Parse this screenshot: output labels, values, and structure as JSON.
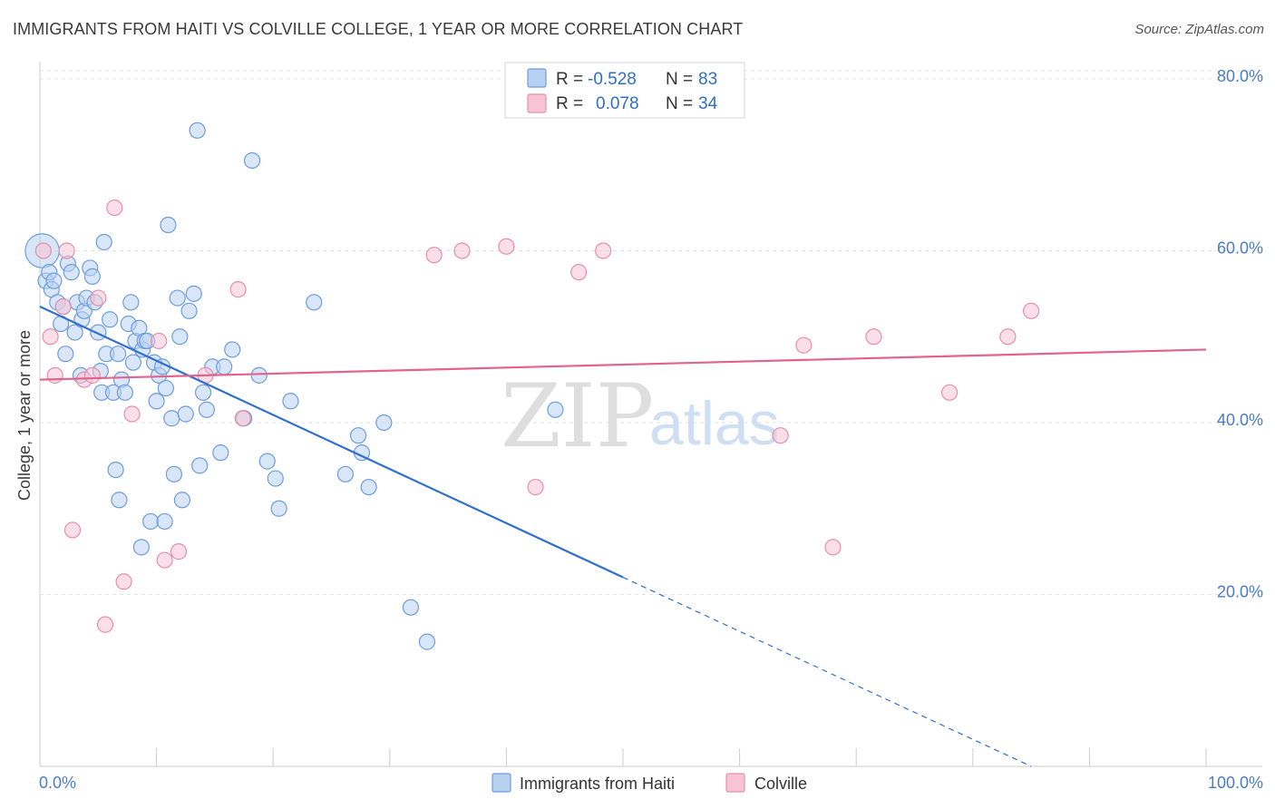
{
  "title": "IMMIGRANTS FROM HAITI VS COLVILLE COLLEGE, 1 YEAR OR MORE CORRELATION CHART",
  "source": "Source: ZipAtlas.com",
  "watermark": {
    "zip": "ZIP",
    "atlas": "atlas"
  },
  "colors": {
    "blue": "#2f6fcf",
    "blue_fill": "#b9d1f1",
    "blue_stroke": "#6d9ddd",
    "pink": "#e0648f",
    "pink_fill": "#f7c4d5",
    "pink_stroke": "#e68fac",
    "grid": "#e3e3e3",
    "tick_label": "#4a7cc7"
  },
  "legend": {
    "r_label": "R =",
    "n_label": "N =",
    "rows": [
      {
        "series": "Immigrants from Haiti",
        "r": "-0.528",
        "n": "83"
      },
      {
        "series": "Colville",
        "r": "0.078",
        "n": "34"
      }
    ]
  },
  "chart_data": {
    "type": "scatter",
    "title": "IMMIGRANTS FROM HAITI VS COLVILLE COLLEGE, 1 YEAR OR MORE CORRELATION CHART",
    "xlabel": "",
    "ylabel": "College, 1 year or more",
    "xlim": [
      0,
      100
    ],
    "ylim": [
      0,
      82
    ],
    "x_tick_labels": [
      "0.0%",
      "100.0%"
    ],
    "y_ticks": [
      20,
      40,
      60,
      80
    ],
    "y_tick_labels": [
      "20.0%",
      "40.0%",
      "60.0%",
      "80.0%"
    ],
    "grid": true,
    "legend_position": "top-center",
    "series": [
      {
        "name": "Immigrants from Haiti",
        "color": "#2f6fcf",
        "trend": {
          "x0": 0,
          "y0": 53.5,
          "x1": 50,
          "y1": 22.0,
          "dashed_to_x": 85,
          "dashed_to_y": 0.0
        },
        "points": [
          [
            0.2,
            60,
            2.2
          ],
          [
            0.5,
            56.5,
            1
          ],
          [
            0.8,
            57.5,
            1
          ],
          [
            1.0,
            55.5,
            1
          ],
          [
            1.2,
            56.5,
            1
          ],
          [
            1.5,
            54,
            1
          ],
          [
            1.8,
            51.5,
            1
          ],
          [
            2.0,
            53.5,
            1
          ],
          [
            2.2,
            48,
            1
          ],
          [
            2.4,
            58.5,
            1
          ],
          [
            2.7,
            57.5,
            1
          ],
          [
            3.0,
            50.5,
            1
          ],
          [
            3.2,
            54,
            1
          ],
          [
            3.5,
            45.5,
            1
          ],
          [
            3.6,
            52,
            1
          ],
          [
            3.8,
            53,
            1
          ],
          [
            4.0,
            54.5,
            1
          ],
          [
            4.3,
            58,
            1
          ],
          [
            4.5,
            57,
            1
          ],
          [
            4.7,
            54,
            1
          ],
          [
            5.0,
            50.5,
            1
          ],
          [
            5.2,
            46,
            1
          ],
          [
            5.3,
            43.5,
            1
          ],
          [
            5.5,
            61,
            1
          ],
          [
            5.7,
            48,
            1
          ],
          [
            6.0,
            52,
            1
          ],
          [
            6.3,
            43.5,
            1
          ],
          [
            6.5,
            34.5,
            1
          ],
          [
            6.7,
            48,
            1
          ],
          [
            6.8,
            31,
            1
          ],
          [
            7.0,
            45,
            1
          ],
          [
            7.3,
            43.5,
            1
          ],
          [
            7.6,
            51.5,
            1
          ],
          [
            7.8,
            54,
            1
          ],
          [
            8.0,
            47,
            1
          ],
          [
            8.2,
            49.5,
            1
          ],
          [
            8.5,
            51,
            1
          ],
          [
            8.7,
            25.5,
            1
          ],
          [
            8.8,
            48.5,
            1
          ],
          [
            9.0,
            49.5,
            1
          ],
          [
            9.2,
            49.5,
            1
          ],
          [
            9.5,
            28.5,
            1
          ],
          [
            9.8,
            47,
            1
          ],
          [
            10.0,
            42.5,
            1
          ],
          [
            10.2,
            45.5,
            1
          ],
          [
            10.5,
            46.5,
            1
          ],
          [
            10.7,
            28.5,
            1
          ],
          [
            10.8,
            44,
            1
          ],
          [
            11.0,
            63,
            1
          ],
          [
            11.3,
            40.5,
            1
          ],
          [
            11.5,
            34,
            1
          ],
          [
            11.8,
            54.5,
            1
          ],
          [
            12.0,
            50,
            1
          ],
          [
            12.2,
            31,
            1
          ],
          [
            12.5,
            41,
            1
          ],
          [
            12.8,
            53,
            1
          ],
          [
            13.2,
            55,
            1
          ],
          [
            13.5,
            74,
            1
          ],
          [
            13.7,
            35,
            1
          ],
          [
            14.0,
            43.5,
            1
          ],
          [
            14.3,
            41.5,
            1
          ],
          [
            14.8,
            46.5,
            1
          ],
          [
            15.5,
            36.5,
            1
          ],
          [
            15.8,
            46.5,
            1
          ],
          [
            16.5,
            48.5,
            1
          ],
          [
            17.5,
            40.5,
            1
          ],
          [
            18.2,
            70.5,
            1
          ],
          [
            18.8,
            45.5,
            1
          ],
          [
            19.5,
            35.5,
            1
          ],
          [
            20.2,
            33.5,
            1
          ],
          [
            20.5,
            30,
            1
          ],
          [
            21.5,
            42.5,
            1
          ],
          [
            23.5,
            54,
            1
          ],
          [
            26.2,
            34,
            1
          ],
          [
            27.3,
            38.5,
            1
          ],
          [
            27.6,
            36.5,
            1
          ],
          [
            28.2,
            32.5,
            1
          ],
          [
            29.5,
            40,
            1
          ],
          [
            31.8,
            18.5,
            1
          ],
          [
            33.2,
            14.5,
            1
          ],
          [
            44.2,
            41.5,
            1
          ]
        ]
      },
      {
        "name": "Colville",
        "color": "#e0648f",
        "trend": {
          "x0": 0,
          "y0": 45.0,
          "x1": 100,
          "y1": 48.5
        },
        "points": [
          [
            0.3,
            60,
            1
          ],
          [
            0.9,
            50,
            1
          ],
          [
            1.3,
            45.5,
            1
          ],
          [
            2.0,
            53.5,
            1
          ],
          [
            2.3,
            60,
            1
          ],
          [
            2.8,
            27.5,
            1
          ],
          [
            3.8,
            45,
            1
          ],
          [
            4.5,
            45.5,
            1
          ],
          [
            5.0,
            54.5,
            1
          ],
          [
            5.6,
            16.5,
            1
          ],
          [
            6.4,
            65,
            1
          ],
          [
            7.2,
            21.5,
            1
          ],
          [
            7.9,
            41,
            1
          ],
          [
            10.2,
            49.5,
            1
          ],
          [
            10.7,
            24,
            1
          ],
          [
            11.9,
            25,
            1
          ],
          [
            14.2,
            45.5,
            1
          ],
          [
            17.0,
            55.5,
            1
          ],
          [
            17.4,
            40.5,
            1
          ],
          [
            33.8,
            59.5,
            1
          ],
          [
            36.2,
            60,
            1
          ],
          [
            40.0,
            60.5,
            1
          ],
          [
            42.5,
            32.5,
            1
          ],
          [
            46.2,
            57.5,
            1
          ],
          [
            48.3,
            60,
            1
          ],
          [
            63.5,
            38.5,
            1
          ],
          [
            65.5,
            49,
            1
          ],
          [
            68.0,
            25.5,
            1
          ],
          [
            71.5,
            50,
            1
          ],
          [
            78.0,
            43.5,
            1
          ],
          [
            83.0,
            50,
            1
          ],
          [
            85.0,
            53,
            1
          ]
        ]
      }
    ]
  }
}
